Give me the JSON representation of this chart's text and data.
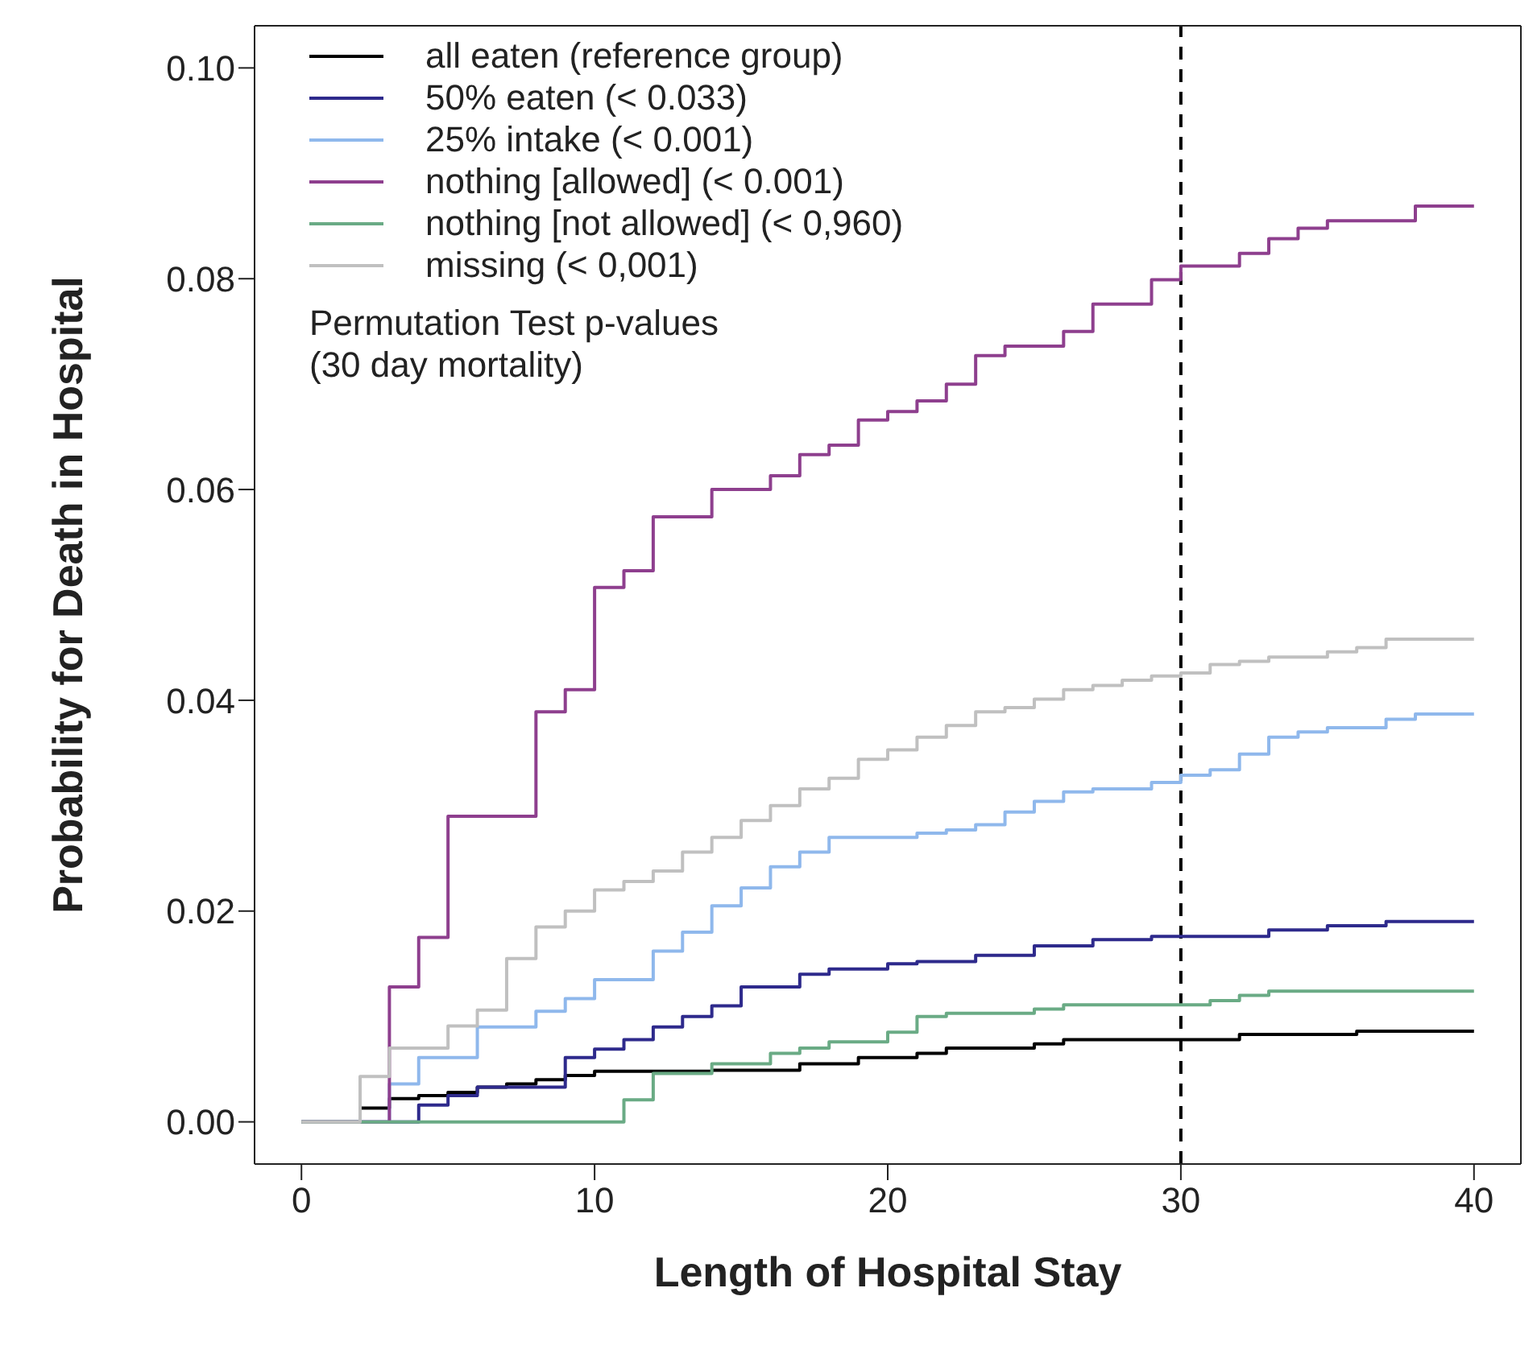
{
  "chart_data": {
    "type": "step",
    "xlabel": "Length of Hospital Stay",
    "ylabel": "Probability for Death in Hospital",
    "legend_title": "Permutation Test p-values\n(30 day mortality)",
    "xlim": [
      -1.6,
      41.6
    ],
    "ylim": [
      -0.004,
      0.104
    ],
    "xticks": [
      0,
      10,
      20,
      30,
      40
    ],
    "yticks": [
      {
        "value": 0,
        "label": "0.00"
      },
      {
        "value": 0.02,
        "label": "0.02"
      },
      {
        "value": 0.04,
        "label": "0.04"
      },
      {
        "value": 0.06,
        "label": "0.06"
      },
      {
        "value": 0.08,
        "label": "0.08"
      },
      {
        "value": 0.1,
        "label": "0.10"
      }
    ],
    "grid": false,
    "legend": "top left",
    "marker": "none",
    "line_style": "solid",
    "ref_lines": [
      {
        "axis": "x",
        "value": 30,
        "color": "#000000",
        "line_style": "dashed"
      }
    ],
    "series": [
      {
        "name": "all eaten (reference group)",
        "color": "#000000",
        "x": [
          0,
          2,
          3,
          4,
          5,
          6,
          7,
          8,
          9,
          10,
          14,
          17,
          19,
          21,
          22,
          25,
          26,
          32,
          36,
          40
        ],
        "values": [
          0,
          0.0013,
          0.0022,
          0.0025,
          0.0028,
          0.0033,
          0.0036,
          0.004,
          0.0044,
          0.0048,
          0.0049,
          0.0055,
          0.0061,
          0.0065,
          0.007,
          0.0074,
          0.0078,
          0.0083,
          0.0086,
          0.0086
        ]
      },
      {
        "name": "50% eaten (< 0.033)",
        "color": "#2e2a8c",
        "x": [
          0,
          4,
          5,
          6,
          9,
          10,
          11,
          12,
          13,
          14,
          15,
          17,
          18,
          20,
          21,
          23,
          25,
          27,
          29,
          33,
          35,
          37,
          40
        ],
        "values": [
          0,
          0.0016,
          0.0025,
          0.0033,
          0.0061,
          0.0069,
          0.0078,
          0.009,
          0.01,
          0.011,
          0.0128,
          0.014,
          0.0145,
          0.015,
          0.0152,
          0.0158,
          0.0167,
          0.0173,
          0.0176,
          0.0182,
          0.0186,
          0.019,
          0.019
        ]
      },
      {
        "name": "25% intake (< 0.001)",
        "color": "#8fb8ec",
        "x": [
          0,
          3,
          4,
          6,
          8,
          9,
          10,
          12,
          13,
          14,
          15,
          16,
          17,
          18,
          21,
          22,
          23,
          24,
          25,
          26,
          27,
          29,
          30,
          31,
          32,
          33,
          34,
          35,
          37,
          38,
          40
        ],
        "values": [
          0,
          0.0036,
          0.0061,
          0.009,
          0.0105,
          0.0117,
          0.0135,
          0.0162,
          0.018,
          0.0205,
          0.0222,
          0.0242,
          0.0256,
          0.027,
          0.0274,
          0.0277,
          0.0282,
          0.0294,
          0.0304,
          0.0313,
          0.0316,
          0.0322,
          0.0329,
          0.0334,
          0.0349,
          0.0365,
          0.037,
          0.0374,
          0.0382,
          0.0387,
          0.0387
        ]
      },
      {
        "name": "nothing [allowed] (< 0.001)",
        "color": "#8e3f8e",
        "x": [
          0,
          3,
          4,
          5,
          8,
          9,
          10,
          11,
          12,
          14,
          16,
          17,
          18,
          19,
          20,
          21,
          22,
          23,
          24,
          26,
          27,
          29,
          30,
          32,
          33,
          34,
          35,
          38,
          40
        ],
        "values": [
          0,
          0.0128,
          0.0175,
          0.029,
          0.0389,
          0.041,
          0.0507,
          0.0523,
          0.0574,
          0.06,
          0.0613,
          0.0633,
          0.0642,
          0.0666,
          0.0674,
          0.0684,
          0.07,
          0.0727,
          0.0736,
          0.075,
          0.0776,
          0.0799,
          0.0812,
          0.0824,
          0.0838,
          0.0848,
          0.0855,
          0.0869,
          0.0869
        ]
      },
      {
        "name": "nothing [not allowed] (< 0,960)",
        "color": "#6aab85",
        "x": [
          0,
          11,
          12,
          14,
          16,
          17,
          18,
          20,
          21,
          22,
          25,
          26,
          31,
          32,
          33,
          40
        ],
        "values": [
          0,
          0.0021,
          0.0046,
          0.0055,
          0.0065,
          0.007,
          0.0076,
          0.0085,
          0.01,
          0.0103,
          0.0107,
          0.0111,
          0.0115,
          0.012,
          0.0124,
          0.0124
        ]
      },
      {
        "name": "missing (< 0,001)",
        "color": "#c0c0c0",
        "x": [
          0,
          2,
          3,
          5,
          6,
          7,
          8,
          9,
          10,
          11,
          12,
          13,
          14,
          15,
          16,
          17,
          18,
          19,
          20,
          21,
          22,
          23,
          24,
          25,
          26,
          27,
          28,
          29,
          30,
          31,
          32,
          33,
          35,
          36,
          37,
          40
        ],
        "values": [
          0,
          0.0043,
          0.007,
          0.0091,
          0.0106,
          0.0155,
          0.0185,
          0.02,
          0.022,
          0.0228,
          0.0238,
          0.0256,
          0.027,
          0.0286,
          0.03,
          0.0316,
          0.0326,
          0.0344,
          0.0353,
          0.0365,
          0.0376,
          0.0389,
          0.0393,
          0.0401,
          0.041,
          0.0414,
          0.0419,
          0.0423,
          0.0426,
          0.0434,
          0.0437,
          0.0441,
          0.0446,
          0.045,
          0.0458,
          0.0458
        ]
      }
    ]
  }
}
